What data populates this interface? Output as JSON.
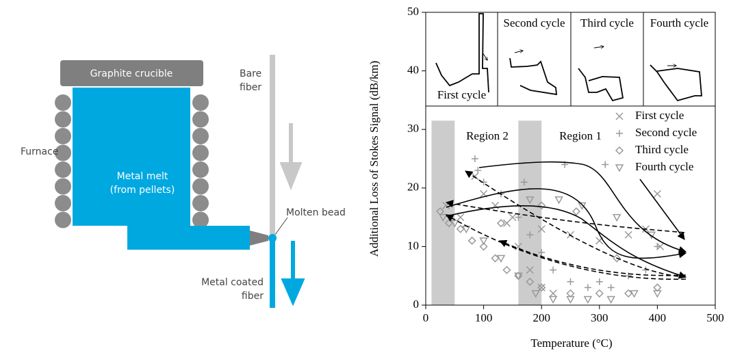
{
  "diagram": {
    "labels": {
      "crucible": "Graphite crucible",
      "furnace": "Furnace",
      "melt_1": "Metal melt",
      "melt_2": "(from pellets)",
      "bare_1": "Bare",
      "bare_2": "fiber",
      "bead": "Molten bead",
      "coated_1": "Metal coated",
      "coated_2": "fiber"
    }
  },
  "chart_data": {
    "type": "scatter",
    "xlabel": "Temperature (°C)",
    "ylabel": "Additional Loss of Stokes Signal (dB/km)",
    "xlim": [
      0,
      500
    ],
    "ylim": [
      0,
      50
    ],
    "xticks": [
      0,
      100,
      200,
      300,
      400,
      500
    ],
    "yticks": [
      0,
      10,
      20,
      30,
      40,
      50
    ],
    "shaded_regions": [
      [
        10,
        50
      ],
      [
        160,
        200
      ]
    ],
    "annotations": [
      "Region 2",
      "Region 1"
    ],
    "insets": [
      "First cycle",
      "Second cycle",
      "Third cycle",
      "Fourth cycle"
    ],
    "legend": "upper right",
    "series": [
      {
        "name": "First cycle",
        "marker": "x",
        "color": "#999999",
        "x": [
          35,
          60,
          85,
          100,
          120,
          140,
          160,
          180,
          200,
          220,
          150,
          200,
          250,
          300,
          350,
          380,
          400,
          405
        ],
        "values": [
          17,
          15,
          22,
          19,
          17,
          14,
          10,
          6,
          3,
          2,
          15,
          13,
          12,
          11,
          12,
          13,
          19,
          10
        ]
      },
      {
        "name": "Second cycle",
        "marker": "plus",
        "color": "#999999",
        "x": [
          85,
          90,
          100,
          130,
          160,
          180,
          200,
          220,
          250,
          280,
          300,
          320,
          350,
          380,
          400,
          170,
          240,
          310
        ],
        "values": [
          25,
          23,
          21,
          19,
          15,
          12,
          9,
          6,
          4,
          3,
          4,
          3,
          5,
          6,
          10,
          21,
          24,
          24
        ]
      },
      {
        "name": "Third cycle",
        "marker": "diamond",
        "color": "#999999",
        "x": [
          25,
          40,
          60,
          80,
          100,
          120,
          140,
          160,
          180,
          200,
          250,
          300,
          350,
          400,
          130,
          200,
          260,
          330
        ],
        "values": [
          16,
          14,
          13,
          11,
          10,
          8,
          6,
          5,
          4,
          3,
          2,
          2,
          2,
          3,
          14,
          17,
          16,
          8
        ]
      },
      {
        "name": "Fourth cycle",
        "marker": "triangle",
        "color": "#999999",
        "x": [
          30,
          50,
          70,
          100,
          130,
          160,
          190,
          220,
          250,
          280,
          320,
          360,
          400,
          180,
          230,
          270,
          330,
          390
        ],
        "values": [
          15,
          14,
          13,
          11,
          8,
          5,
          2,
          1,
          1,
          1,
          1,
          2,
          2,
          18,
          18,
          17,
          15,
          12
        ]
      }
    ]
  }
}
